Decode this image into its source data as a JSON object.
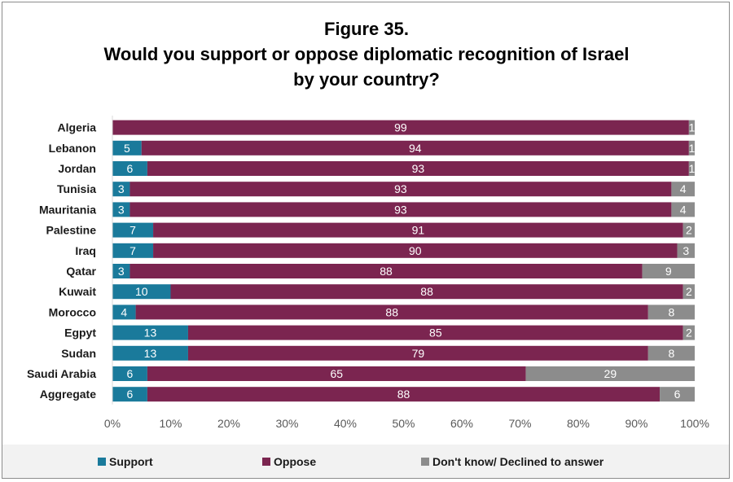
{
  "chart_data": {
    "type": "bar",
    "orientation": "horizontal",
    "stacked": true,
    "title": "Figure 35.",
    "subtitle_lines": [
      "Would you support or oppose diplomatic recognition of Israel",
      "by your country?"
    ],
    "categories": [
      "Algeria",
      "Lebanon",
      "Jordan",
      "Tunisia",
      "Mauritania",
      "Palestine",
      "Iraq",
      "Qatar",
      "Kuwait",
      "Morocco",
      "Egpyt",
      "Sudan",
      "Saudi Arabia",
      "Aggregate"
    ],
    "series": [
      {
        "name": "Support",
        "color": "#1a7a9b",
        "values": [
          0,
          5,
          6,
          3,
          3,
          7,
          7,
          3,
          10,
          4,
          13,
          13,
          6,
          6
        ]
      },
      {
        "name": "Oppose",
        "color": "#7b2550",
        "values": [
          99,
          94,
          93,
          93,
          93,
          91,
          90,
          88,
          88,
          88,
          85,
          79,
          65,
          88
        ]
      },
      {
        "name": "Don't know/ Declined to answer",
        "color": "#8c8c8c",
        "values": [
          1,
          1,
          1,
          4,
          4,
          2,
          3,
          9,
          2,
          8,
          2,
          8,
          29,
          6
        ]
      }
    ],
    "xlim": [
      0,
      100
    ],
    "x_ticks": [
      "0%",
      "10%",
      "20%",
      "30%",
      "40%",
      "50%",
      "60%",
      "70%",
      "80%",
      "90%",
      "100%"
    ],
    "legend_position": "bottom",
    "grid": false
  }
}
